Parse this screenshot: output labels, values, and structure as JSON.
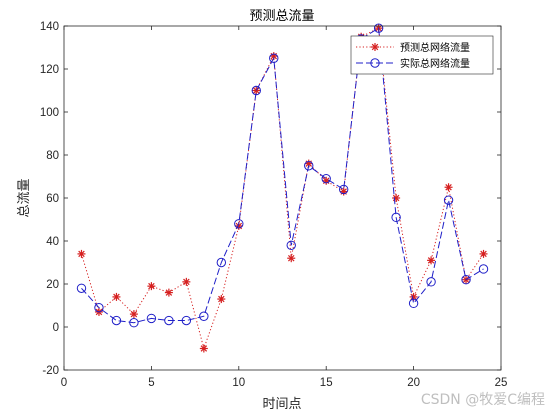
{
  "chart_data": {
    "type": "line",
    "title": "预测总流量",
    "xlabel": "时间点",
    "ylabel": "总流量",
    "xlim": [
      0,
      25
    ],
    "ylim": [
      -20,
      140
    ],
    "xticks": [
      0,
      5,
      10,
      15,
      20,
      25
    ],
    "yticks": [
      -20,
      0,
      20,
      40,
      60,
      80,
      100,
      120,
      140
    ],
    "grid": false,
    "legend_position": "top-right",
    "x": [
      1,
      2,
      3,
      4,
      5,
      6,
      7,
      8,
      9,
      10,
      11,
      12,
      13,
      14,
      15,
      16,
      17,
      18,
      19,
      20,
      21,
      22,
      23,
      24
    ],
    "series": [
      {
        "name": "预测总网络流量",
        "marker": "asterisk",
        "line_style": "dotted",
        "color": "#d62020",
        "values": [
          34,
          7,
          14,
          6,
          19,
          16,
          21,
          -10,
          13,
          47,
          110,
          126,
          32,
          76,
          68,
          63,
          135,
          139,
          60,
          14,
          31,
          65,
          22,
          34
        ]
      },
      {
        "name": "实际总网络流量",
        "marker": "circle",
        "line_style": "dashed",
        "color": "#1f1fc8",
        "values": [
          18,
          9,
          3,
          2,
          4,
          3,
          3,
          5,
          30,
          48,
          110,
          125,
          38,
          75,
          69,
          64,
          134,
          139,
          51,
          11,
          21,
          59,
          22,
          27
        ]
      }
    ]
  },
  "watermark": "CSDN @牧爱C编程"
}
